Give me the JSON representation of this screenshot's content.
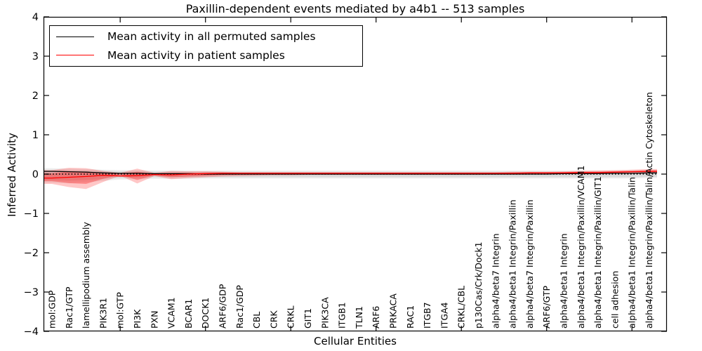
{
  "chart_data": {
    "type": "line",
    "title": "Paxillin-dependent events mediated by a4b1 -- 513 samples",
    "xlabel": "Cellular Entities",
    "ylabel": "Inferred Activity",
    "ylim": [
      -4,
      4
    ],
    "grid": false,
    "y_ticks": [
      {
        "value": 4,
        "label": "4"
      },
      {
        "value": 3,
        "label": "3"
      },
      {
        "value": 2,
        "label": "2"
      },
      {
        "value": 1,
        "label": "1"
      },
      {
        "value": 0,
        "label": "0"
      },
      {
        "value": -1,
        "label": "−1"
      },
      {
        "value": -2,
        "label": "−2"
      },
      {
        "value": -3,
        "label": "−3"
      },
      {
        "value": -4,
        "label": "−4"
      }
    ],
    "x_major_tick_indices": [
      4,
      9,
      14,
      19,
      24,
      29,
      34
    ],
    "zero_line": {
      "y": 0,
      "style": "dotted",
      "color": "#000000"
    },
    "legend": {
      "position": "upper-left",
      "entries": [
        {
          "label": "Mean activity in all permuted samples",
          "color": "#000000"
        },
        {
          "label": "Mean activity in patient samples",
          "color": "#ff0000"
        }
      ]
    },
    "categories": [
      "mol:GDP",
      "Rac1/GTP",
      "lamellipodium assembly",
      "PIK3R1",
      "mol:GTP",
      "PI3K",
      "PXN",
      "VCAM1",
      "BCAR1",
      "DOCK1",
      "ARF6/GDP",
      "Rac1/GDP",
      "CBL",
      "CRK",
      "CRKL",
      "GIT1",
      "PIK3CA",
      "ITGB1",
      "TLN1",
      "ARF6",
      "PRKACA",
      "RAC1",
      "ITGB7",
      "ITGA4",
      "CRKL/CBL",
      "p130Cas/Crk/Dock1",
      "alpha4/beta7 Integrin",
      "alpha4/beta1 Integrin/Paxillin",
      "alpha4/beta7 Integrin/Paxillin",
      "ARF6/GTP",
      "alpha4/beta1 Integrin",
      "alpha4/beta1 Integrin/Paxillin/VCAM1",
      "alpha4/beta1 Integrin/Paxillin/GIT1",
      "cell adhesion",
      "alpha4/beta1 Integrin/Paxillin/Talin",
      "alpha4/beta1 Integrin/Paxillin/Talin/Actin Cytoskeleton"
    ],
    "series": [
      {
        "name": "Mean activity in all permuted samples",
        "color": "#000000",
        "values": [
          0.07,
          0.06,
          0.05,
          0.03,
          0.02,
          0.02,
          0.01,
          0.01,
          0.01,
          0,
          0,
          0,
          0,
          0,
          0,
          0,
          0,
          0,
          0,
          0,
          0,
          0,
          0,
          0,
          0,
          0,
          0,
          0,
          0,
          0,
          0.01,
          0.01,
          0.01,
          0.02,
          0.02,
          0.03
        ]
      },
      {
        "name": "Mean activity in patient samples",
        "color": "#ff0000",
        "values": [
          -0.1,
          -0.08,
          -0.06,
          -0.03,
          -0.05,
          -0.04,
          -0.01,
          -0.02,
          0,
          0.01,
          0.02,
          0.02,
          0.02,
          0.02,
          0.02,
          0.02,
          0.02,
          0.02,
          0.02,
          0.02,
          0.02,
          0.02,
          0.02,
          0.02,
          0.02,
          0.02,
          0.02,
          0.02,
          0.03,
          0.03,
          0.03,
          0.04,
          0.04,
          0.05,
          0.06,
          0.07
        ]
      }
    ],
    "bands": [
      {
        "name": "permuted-std-outer",
        "color": "rgba(0,0,0,0.07)",
        "upper": [
          0.15,
          0.14,
          0.13,
          0.11,
          0.1,
          0.1,
          0.09,
          0.09,
          0.09,
          0.09,
          0.09,
          0.09,
          0.09,
          0.09,
          0.09,
          0.09,
          0.09,
          0.09,
          0.09,
          0.09,
          0.09,
          0.09,
          0.09,
          0.09,
          0.09,
          0.09,
          0.09,
          0.09,
          0.09,
          0.09,
          0.09,
          0.09,
          0.09,
          0.09,
          0.1,
          0.1
        ],
        "lower": [
          -0.22,
          -0.23,
          -0.21,
          -0.17,
          -0.14,
          -0.13,
          -0.12,
          -0.12,
          -0.12,
          -0.11,
          -0.11,
          -0.11,
          -0.11,
          -0.11,
          -0.11,
          -0.11,
          -0.11,
          -0.11,
          -0.11,
          -0.11,
          -0.11,
          -0.11,
          -0.11,
          -0.11,
          -0.11,
          -0.11,
          -0.11,
          -0.11,
          -0.11,
          -0.11,
          -0.11,
          -0.11,
          -0.11,
          -0.11,
          -0.11,
          -0.1
        ]
      },
      {
        "name": "permuted-std-inner",
        "color": "rgba(0,0,0,0.08)",
        "upper": [
          0.11,
          0.1,
          0.09,
          0.08,
          0.07,
          0.07,
          0.06,
          0.06,
          0.06,
          0.06,
          0.06,
          0.06,
          0.06,
          0.06,
          0.06,
          0.06,
          0.06,
          0.06,
          0.06,
          0.06,
          0.06,
          0.06,
          0.06,
          0.06,
          0.06,
          0.06,
          0.06,
          0.06,
          0.06,
          0.06,
          0.06,
          0.06,
          0.06,
          0.06,
          0.07,
          0.07
        ],
        "lower": [
          -0.16,
          -0.17,
          -0.15,
          -0.12,
          -0.1,
          -0.09,
          -0.08,
          -0.08,
          -0.08,
          -0.08,
          -0.08,
          -0.08,
          -0.08,
          -0.08,
          -0.08,
          -0.08,
          -0.08,
          -0.08,
          -0.08,
          -0.08,
          -0.08,
          -0.08,
          -0.08,
          -0.08,
          -0.08,
          -0.08,
          -0.08,
          -0.08,
          -0.08,
          -0.08,
          -0.08,
          -0.08,
          -0.08,
          -0.08,
          -0.08,
          -0.07
        ]
      },
      {
        "name": "patient-std-outer",
        "color": "rgba(255,0,0,0.22)",
        "upper": [
          0.1,
          0.16,
          0.15,
          0.08,
          0.03,
          0.14,
          0.03,
          0.08,
          0.07,
          0.07,
          0.06,
          0.05,
          0.05,
          0.05,
          0.05,
          0.05,
          0.05,
          0.05,
          0.05,
          0.05,
          0.05,
          0.05,
          0.05,
          0.05,
          0.05,
          0.05,
          0.05,
          0.06,
          0.06,
          0.06,
          0.07,
          0.08,
          0.09,
          0.1,
          0.11,
          0.13
        ],
        "lower": [
          -0.25,
          -0.33,
          -0.38,
          -0.2,
          -0.04,
          -0.24,
          -0.05,
          -0.13,
          -0.1,
          -0.08,
          -0.06,
          -0.05,
          -0.04,
          -0.03,
          -0.03,
          -0.02,
          -0.02,
          -0.02,
          -0.02,
          -0.02,
          -0.02,
          -0.02,
          -0.02,
          -0.02,
          -0.02,
          -0.02,
          -0.01,
          -0.01,
          -0.01,
          0,
          0,
          0,
          0,
          0.01,
          0.01,
          0.02
        ]
      },
      {
        "name": "patient-std-inner",
        "color": "rgba(255,0,0,0.30)",
        "upper": [
          0.02,
          0.07,
          0.06,
          0.03,
          0.01,
          0.06,
          0.01,
          0.03,
          0.03,
          0.04,
          0.04,
          0.03,
          0.03,
          0.03,
          0.03,
          0.03,
          0.03,
          0.03,
          0.03,
          0.03,
          0.03,
          0.03,
          0.03,
          0.03,
          0.03,
          0.03,
          0.03,
          0.04,
          0.04,
          0.04,
          0.05,
          0.06,
          0.06,
          0.07,
          0.08,
          0.1
        ],
        "lower": [
          -0.18,
          -0.23,
          -0.25,
          -0.12,
          -0.02,
          -0.15,
          -0.03,
          -0.08,
          -0.06,
          -0.04,
          -0.02,
          -0.01,
          -0.01,
          0,
          0,
          0,
          0,
          0,
          0,
          0,
          0,
          0,
          0,
          0,
          0,
          0,
          0.01,
          0.01,
          0.01,
          0.01,
          0.01,
          0.02,
          0.02,
          0.03,
          0.04,
          0.05
        ]
      }
    ]
  }
}
